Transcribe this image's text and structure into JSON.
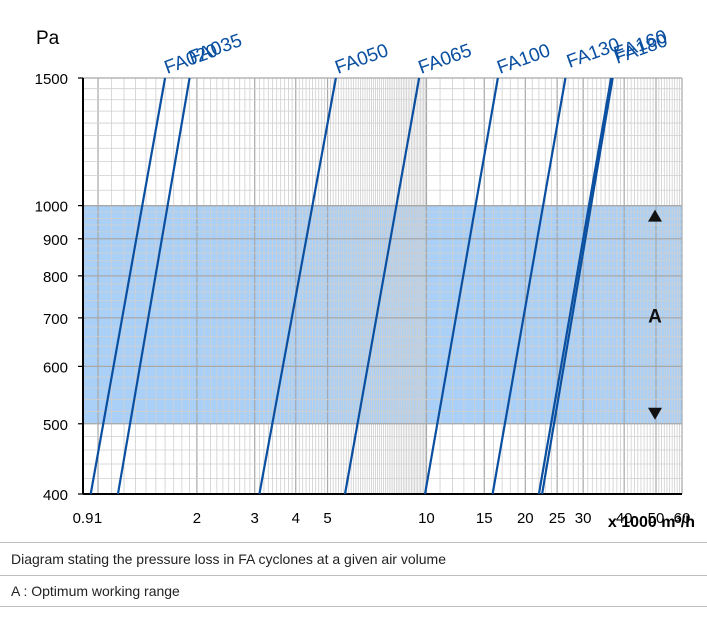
{
  "chart_data": {
    "type": "line",
    "title": "",
    "y_unit_label": "Pa",
    "x_unit_label": "x 1000 m³/h",
    "x_scale": "log",
    "y_scale": "log",
    "xlim": [
      0.9,
      60
    ],
    "ylim": [
      400,
      1500
    ],
    "x_ticks": [
      0.9,
      1,
      2,
      3,
      4,
      5,
      10,
      15,
      20,
      25,
      30,
      40,
      50,
      60
    ],
    "x_tick_labels": [
      "0.9",
      "1",
      "2",
      "3",
      "4",
      "5",
      "10",
      "15",
      "20",
      "25",
      "30",
      "40",
      "50",
      "60"
    ],
    "y_ticks": [
      400,
      500,
      600,
      700,
      800,
      900,
      1000,
      1500
    ],
    "y_tick_labels": [
      "400",
      "500",
      "600",
      "700",
      "800",
      "900",
      "1000",
      "1500"
    ],
    "grid": true,
    "series_color": "#0a4fa0",
    "band_color": "#aad0f7",
    "series": [
      {
        "name": "FA020",
        "x": [
          0.95,
          1.6
        ],
        "y": [
          400,
          1500
        ]
      },
      {
        "name": "FA035",
        "x": [
          1.15,
          1.9
        ],
        "y": [
          400,
          1500
        ]
      },
      {
        "name": "FA050",
        "x": [
          3.1,
          5.3
        ],
        "y": [
          400,
          1500
        ]
      },
      {
        "name": "FA065",
        "x": [
          5.65,
          9.5
        ],
        "y": [
          400,
          1500
        ]
      },
      {
        "name": "FA100",
        "x": [
          9.9,
          16.5
        ],
        "y": [
          400,
          1500
        ]
      },
      {
        "name": "FA130",
        "x": [
          15.9,
          26.5
        ],
        "y": [
          400,
          1500
        ]
      },
      {
        "name": "FA160",
        "x": [
          22.5,
          36.9
        ],
        "y": [
          400,
          1500
        ]
      },
      {
        "name": "FA180",
        "x": [
          22.0,
          36.5
        ],
        "y": [
          400,
          1500
        ]
      }
    ],
    "band": {
      "label": "A",
      "y_from": 500,
      "y_to": 1000
    }
  },
  "captions": {
    "line1": "Diagram stating the pressure loss in FA cyclones at a given air volume",
    "line2": "A : Optimum working range"
  }
}
